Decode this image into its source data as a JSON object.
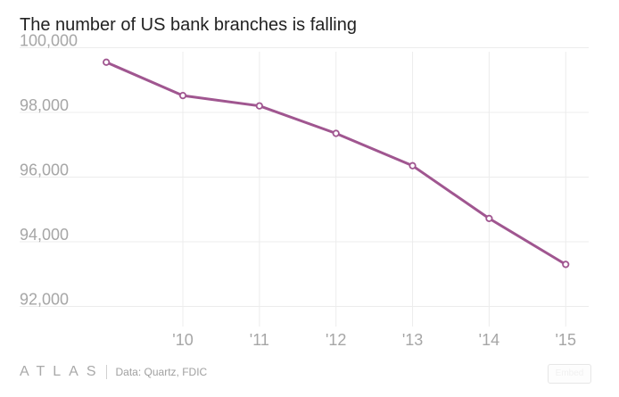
{
  "chart_data": {
    "type": "line",
    "title": "The number of US bank branches is falling",
    "x": [
      2009,
      2010,
      2011,
      2012,
      2013,
      2014,
      2015
    ],
    "x_tick_values": [
      2010,
      2011,
      2012,
      2013,
      2014,
      2015
    ],
    "x_tick_labels": [
      "'10",
      "'11",
      "'12",
      "'13",
      "'14",
      "'15"
    ],
    "y_tick_values": [
      92000,
      94000,
      96000,
      98000,
      100000
    ],
    "y_tick_labels": [
      "92,000",
      "94,000",
      "96,000",
      "98,000",
      "100,000"
    ],
    "series": [
      {
        "values": [
          99550,
          98520,
          98200,
          97350,
          96350,
          94720,
          93300
        ]
      }
    ],
    "xlim": [
      2008.8,
      2015.3
    ],
    "ylim": [
      91600,
      100150
    ],
    "grid": true,
    "colors": {
      "line": "#a05690",
      "grid": "#ececec",
      "tick_label": "#a6a6a6"
    }
  },
  "footer": {
    "brand": "ATLAS",
    "source": "Data: Quartz, FDIC",
    "embed_label": "Embed"
  }
}
